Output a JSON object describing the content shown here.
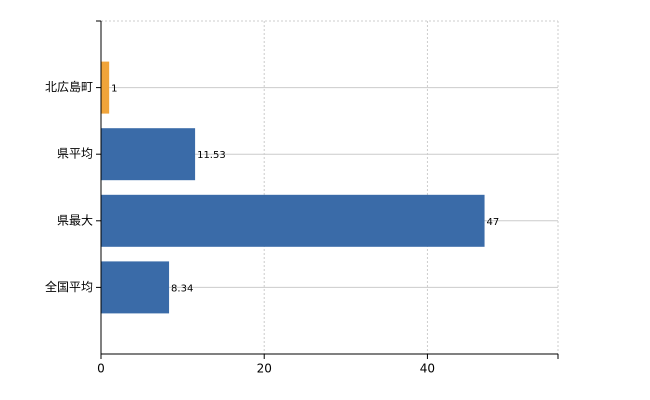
{
  "chart_data": {
    "type": "bar",
    "orientation": "horizontal",
    "categories": [
      "北広島町",
      "県平均",
      "県最大",
      "全国平均"
    ],
    "values": [
      1,
      11.53,
      47,
      8.34
    ],
    "colors": [
      "#f0a43a",
      "#3a6ba8",
      "#3a6ba8",
      "#3a6ba8"
    ],
    "xlim": [
      0,
      56
    ],
    "xticks": [
      0,
      20,
      40
    ],
    "grid": true
  }
}
